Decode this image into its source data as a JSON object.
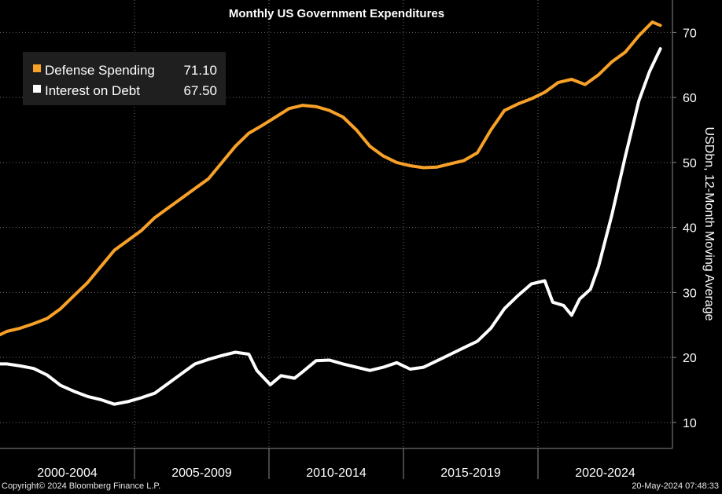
{
  "chart_data": {
    "type": "line",
    "title": "Monthly US Government Expenditures",
    "ylabel": "USDbn, 12-Month Moving Average",
    "ylim": [
      6,
      75
    ],
    "y_ticks": [
      10,
      20,
      30,
      40,
      50,
      60,
      70
    ],
    "x_range": [
      1999.75,
      2024.75
    ],
    "x_groups": [
      {
        "label": "2000-2004",
        "start": 1999.75,
        "end": 2004.75
      },
      {
        "label": "2005-2009",
        "start": 2004.75,
        "end": 2009.75
      },
      {
        "label": "2010-2014",
        "start": 2009.75,
        "end": 2014.75
      },
      {
        "label": "2015-2019",
        "start": 2014.75,
        "end": 2019.75
      },
      {
        "label": "2020-2024",
        "start": 2019.75,
        "end": 2024.75
      }
    ],
    "grid": true,
    "legend_position": "top-left",
    "series": [
      {
        "name": "Defense Spending",
        "last_value": "71.10",
        "color": "#f7a128",
        "points": [
          [
            1999.75,
            23.5
          ],
          [
            2000.0,
            24.0
          ],
          [
            2000.5,
            24.5
          ],
          [
            2001.0,
            25.2
          ],
          [
            2001.5,
            26.0
          ],
          [
            2002.0,
            27.5
          ],
          [
            2002.5,
            29.5
          ],
          [
            2003.0,
            31.5
          ],
          [
            2003.5,
            34.0
          ],
          [
            2004.0,
            36.5
          ],
          [
            2004.5,
            38.0
          ],
          [
            2005.0,
            39.5
          ],
          [
            2005.5,
            41.5
          ],
          [
            2006.0,
            43.0
          ],
          [
            2006.5,
            44.5
          ],
          [
            2007.0,
            46.0
          ],
          [
            2007.5,
            47.5
          ],
          [
            2008.0,
            50.0
          ],
          [
            2008.5,
            52.5
          ],
          [
            2009.0,
            54.5
          ],
          [
            2009.5,
            55.7
          ],
          [
            2010.0,
            57.0
          ],
          [
            2010.5,
            58.3
          ],
          [
            2011.0,
            58.8
          ],
          [
            2011.5,
            58.6
          ],
          [
            2012.0,
            58.0
          ],
          [
            2012.5,
            57.0
          ],
          [
            2013.0,
            55.0
          ],
          [
            2013.5,
            52.5
          ],
          [
            2014.0,
            51.0
          ],
          [
            2014.5,
            50.0
          ],
          [
            2015.0,
            49.5
          ],
          [
            2015.5,
            49.2
          ],
          [
            2016.0,
            49.3
          ],
          [
            2016.5,
            49.8
          ],
          [
            2017.0,
            50.3
          ],
          [
            2017.5,
            51.5
          ],
          [
            2018.0,
            55.0
          ],
          [
            2018.5,
            58.0
          ],
          [
            2019.0,
            59.0
          ],
          [
            2019.5,
            59.8
          ],
          [
            2020.0,
            60.8
          ],
          [
            2020.5,
            62.3
          ],
          [
            2021.0,
            62.8
          ],
          [
            2021.5,
            62.0
          ],
          [
            2022.0,
            63.5
          ],
          [
            2022.5,
            65.5
          ],
          [
            2023.0,
            67.0
          ],
          [
            2023.5,
            69.5
          ],
          [
            2024.0,
            71.6
          ],
          [
            2024.3,
            71.1
          ]
        ]
      },
      {
        "name": "Interest on Debt",
        "last_value": "67.50",
        "color": "#ffffff",
        "points": [
          [
            1999.75,
            19.0
          ],
          [
            2000.0,
            19.0
          ],
          [
            2000.5,
            18.7
          ],
          [
            2001.0,
            18.3
          ],
          [
            2001.5,
            17.3
          ],
          [
            2002.0,
            15.7
          ],
          [
            2002.5,
            14.8
          ],
          [
            2003.0,
            14.0
          ],
          [
            2003.5,
            13.5
          ],
          [
            2004.0,
            12.8
          ],
          [
            2004.5,
            13.2
          ],
          [
            2005.0,
            13.8
          ],
          [
            2005.5,
            14.5
          ],
          [
            2006.0,
            16.0
          ],
          [
            2006.5,
            17.5
          ],
          [
            2007.0,
            19.0
          ],
          [
            2007.5,
            19.7
          ],
          [
            2008.0,
            20.3
          ],
          [
            2008.5,
            20.8
          ],
          [
            2009.0,
            20.5
          ],
          [
            2009.3,
            18.0
          ],
          [
            2009.8,
            15.8
          ],
          [
            2010.2,
            17.2
          ],
          [
            2010.7,
            16.8
          ],
          [
            2011.0,
            17.8
          ],
          [
            2011.5,
            19.5
          ],
          [
            2012.0,
            19.6
          ],
          [
            2012.5,
            19.0
          ],
          [
            2013.0,
            18.5
          ],
          [
            2013.5,
            18.0
          ],
          [
            2014.0,
            18.5
          ],
          [
            2014.5,
            19.2
          ],
          [
            2015.0,
            18.2
          ],
          [
            2015.5,
            18.5
          ],
          [
            2016.0,
            19.5
          ],
          [
            2016.5,
            20.5
          ],
          [
            2017.0,
            21.5
          ],
          [
            2017.5,
            22.5
          ],
          [
            2018.0,
            24.5
          ],
          [
            2018.5,
            27.5
          ],
          [
            2019.0,
            29.5
          ],
          [
            2019.5,
            31.3
          ],
          [
            2020.0,
            31.8
          ],
          [
            2020.3,
            28.5
          ],
          [
            2020.7,
            28.0
          ],
          [
            2021.0,
            26.5
          ],
          [
            2021.3,
            29.0
          ],
          [
            2021.7,
            30.5
          ],
          [
            2022.0,
            34.0
          ],
          [
            2022.5,
            42.0
          ],
          [
            2023.0,
            51.0
          ],
          [
            2023.5,
            59.5
          ],
          [
            2023.9,
            64.0
          ],
          [
            2024.3,
            67.5
          ]
        ]
      }
    ]
  },
  "footer": {
    "copyright": "Copyright© 2024 Bloomberg Finance L.P.",
    "timestamp": "20-May-2024 07:48:33"
  }
}
